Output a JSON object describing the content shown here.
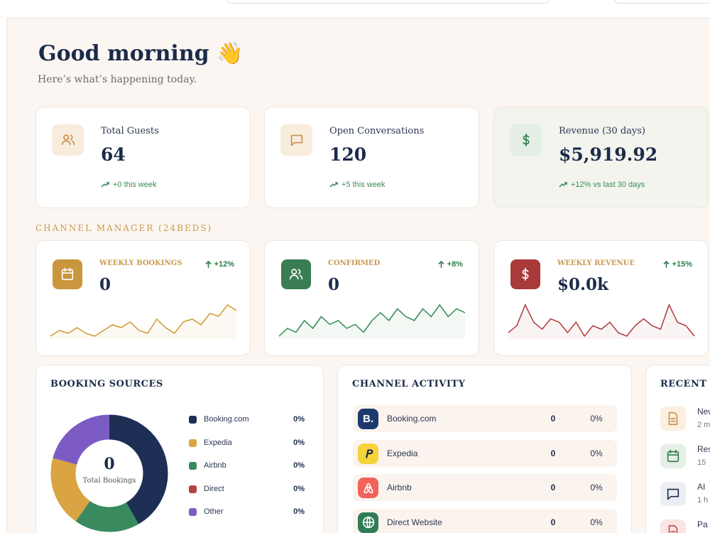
{
  "greeting": {
    "title": "Good morning 👋",
    "subtitle": "Here’s what’s happening today."
  },
  "stats": [
    {
      "label": "Total Guests",
      "value": "64",
      "change": "+0 this week"
    },
    {
      "label": "Open Conversations",
      "value": "120",
      "change": "+5 this week"
    },
    {
      "label": "Revenue (30 days)",
      "value": "$5,919.92",
      "change": "+12% vs last 30 days"
    }
  ],
  "channel_manager": {
    "heading": "CHANNEL MANAGER (24BEDS)",
    "cards": [
      {
        "label": "WEEKLY BOOKINGS",
        "value": "0",
        "change": "+12%",
        "trend": [
          3,
          4,
          3.5,
          4.5,
          3.5,
          3,
          4,
          5,
          4.5,
          5.5,
          4,
          3.5,
          6,
          4.5,
          3.5,
          5.5,
          6,
          5,
          7,
          6.5,
          8.5,
          7.5
        ]
      },
      {
        "label": "CONFIRMED",
        "value": "0",
        "change": "+8%",
        "trend": [
          3,
          4,
          3.5,
          5,
          4,
          5.5,
          4.5,
          5,
          4,
          4.5,
          3.5,
          5,
          6,
          5,
          6.5,
          5.5,
          5,
          6.5,
          5.5,
          7,
          5.5,
          6.5,
          6
        ]
      },
      {
        "label": "WEEKLY REVENUE",
        "value": "$0.0k",
        "change": "+15%",
        "trend": [
          4,
          5,
          8,
          5.5,
          4.5,
          6,
          5.5,
          4,
          5.5,
          3.5,
          5,
          4.5,
          5.5,
          4,
          3.5,
          5,
          6,
          5,
          4.5,
          8,
          5.5,
          5,
          3.5
        ]
      }
    ]
  },
  "booking_sources": {
    "title": "BOOKING SOURCES",
    "total": "0",
    "total_label": "Total Bookings",
    "items": [
      {
        "name": "Booking.com",
        "percent": "0%"
      },
      {
        "name": "Expedia",
        "percent": "0%"
      },
      {
        "name": "Airbnb",
        "percent": "0%"
      },
      {
        "name": "Direct",
        "percent": "0%"
      },
      {
        "name": "Other",
        "percent": "0%"
      }
    ]
  },
  "channel_activity": {
    "title": "CHANNEL ACTIVITY",
    "rows": [
      {
        "logo": "B.",
        "name": "Booking.com",
        "count": "0",
        "percent": "0%"
      },
      {
        "name": "Expedia",
        "count": "0",
        "percent": "0%"
      },
      {
        "name": "Airbnb",
        "count": "0",
        "percent": "0%"
      },
      {
        "name": "Direct Website",
        "count": "0",
        "percent": "0%"
      }
    ]
  },
  "recent": {
    "title": "RECENT A",
    "items": [
      {
        "title": "New",
        "time": "2 m"
      },
      {
        "title": "Res",
        "time": "15"
      },
      {
        "title": "AI",
        "time": "1 h"
      },
      {
        "title": "Pa"
      }
    ]
  }
}
